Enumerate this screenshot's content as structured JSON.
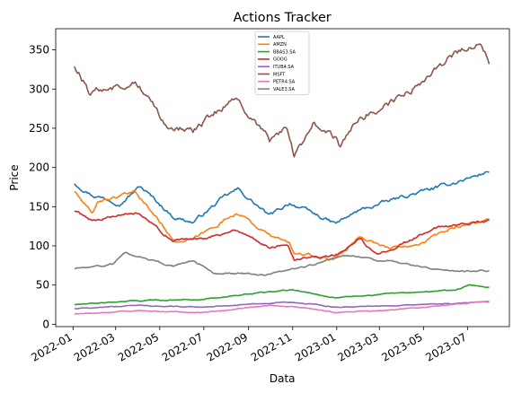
{
  "chart_data": {
    "type": "line",
    "title": "Actions Tracker",
    "xlabel": "Data",
    "ylabel": "Price",
    "xlim": [
      "2021-12-08",
      "2023-08-28"
    ],
    "ylim": [
      -3,
      377
    ],
    "x_ticks": [
      "2022-01",
      "2022-03",
      "2022-05",
      "2022-07",
      "2022-09",
      "2022-11",
      "2023-01",
      "2023-03",
      "2023-05",
      "2023-07"
    ],
    "y_ticks": [
      0,
      50,
      100,
      150,
      200,
      250,
      300,
      350
    ],
    "grid": false,
    "legend_position": "top-center",
    "series": [
      {
        "name": "AAPL",
        "color": "#1f77b4",
        "points": [
          [
            "2022-01-03",
            180
          ],
          [
            "2022-01-28",
            165
          ],
          [
            "2022-03-08",
            155
          ],
          [
            "2022-04-04",
            176
          ],
          [
            "2022-05-20",
            137
          ],
          [
            "2022-06-16",
            130
          ],
          [
            "2022-07-29",
            162
          ],
          [
            "2022-08-17",
            172
          ],
          [
            "2022-09-30",
            138
          ],
          [
            "2022-10-28",
            155
          ],
          [
            "2022-12-30",
            128
          ],
          [
            "2023-02-01",
            145
          ],
          [
            "2023-03-31",
            162
          ],
          [
            "2023-05-31",
            177
          ],
          [
            "2023-07-31",
            195
          ]
        ]
      },
      {
        "name": "AMZN",
        "color": "#ff7f0e",
        "points": [
          [
            "2022-01-03",
            170
          ],
          [
            "2022-01-28",
            139
          ],
          [
            "2022-02-04",
            157
          ],
          [
            "2022-03-29",
            168
          ],
          [
            "2022-05-24",
            105
          ],
          [
            "2022-06-15",
            107
          ],
          [
            "2022-08-16",
            143
          ],
          [
            "2022-09-30",
            113
          ],
          [
            "2022-10-28",
            103
          ],
          [
            "2022-11-04",
            90
          ],
          [
            "2022-12-28",
            83
          ],
          [
            "2023-02-02",
            112
          ],
          [
            "2023-03-15",
            97
          ],
          [
            "2023-04-28",
            105
          ],
          [
            "2023-06-15",
            125
          ],
          [
            "2023-07-31",
            133
          ]
        ]
      },
      {
        "name": "BBAS3.SA",
        "color": "#2ca02c",
        "points": [
          [
            "2022-01-03",
            25
          ],
          [
            "2022-03-31",
            30
          ],
          [
            "2022-06-30",
            32
          ],
          [
            "2022-09-16",
            40
          ],
          [
            "2022-10-31",
            44
          ],
          [
            "2022-12-30",
            34
          ],
          [
            "2023-03-31",
            40
          ],
          [
            "2023-06-15",
            44
          ],
          [
            "2023-07-04",
            50
          ],
          [
            "2023-07-31",
            47
          ]
        ]
      },
      {
        "name": "GOOG",
        "color": "#d62728",
        "points": [
          [
            "2022-01-03",
            145
          ],
          [
            "2022-01-28",
            133
          ],
          [
            "2022-03-29",
            142
          ],
          [
            "2022-05-20",
            107
          ],
          [
            "2022-06-30",
            110
          ],
          [
            "2022-08-16",
            121
          ],
          [
            "2022-09-30",
            98
          ],
          [
            "2022-10-25",
            104
          ],
          [
            "2022-11-03",
            84
          ],
          [
            "2022-12-30",
            88
          ],
          [
            "2023-02-02",
            108
          ],
          [
            "2023-02-24",
            89
          ],
          [
            "2023-03-31",
            103
          ],
          [
            "2023-05-26",
            125
          ],
          [
            "2023-07-31",
            132
          ]
        ]
      },
      {
        "name": "ITUB4.SA",
        "color": "#9467bd",
        "points": [
          [
            "2022-01-03",
            20
          ],
          [
            "2022-03-31",
            24
          ],
          [
            "2022-06-30",
            22
          ],
          [
            "2022-09-30",
            27
          ],
          [
            "2022-10-31",
            28
          ],
          [
            "2022-12-30",
            22
          ],
          [
            "2023-03-31",
            24
          ],
          [
            "2023-05-31",
            26
          ],
          [
            "2023-07-31",
            29
          ]
        ]
      },
      {
        "name": "MSFT",
        "color": "#8c564b",
        "points": [
          [
            "2022-01-03",
            330
          ],
          [
            "2022-01-24",
            296
          ],
          [
            "2022-03-29",
            310
          ],
          [
            "2022-05-11",
            255
          ],
          [
            "2022-06-16",
            245
          ],
          [
            "2022-08-12",
            290
          ],
          [
            "2022-09-30",
            233
          ],
          [
            "2022-10-25",
            250
          ],
          [
            "2022-11-03",
            214
          ],
          [
            "2022-11-30",
            255
          ],
          [
            "2022-12-30",
            239
          ],
          [
            "2023-01-05",
            222
          ],
          [
            "2023-02-02",
            264
          ],
          [
            "2023-03-31",
            288
          ],
          [
            "2023-05-31",
            332
          ],
          [
            "2023-06-15",
            348
          ],
          [
            "2023-07-18",
            359
          ],
          [
            "2023-07-31",
            335
          ]
        ]
      },
      {
        "name": "PETR4.SA",
        "color": "#e377c2",
        "points": [
          [
            "2022-01-03",
            13
          ],
          [
            "2022-03-31",
            17
          ],
          [
            "2022-06-30",
            15
          ],
          [
            "2022-09-30",
            24
          ],
          [
            "2022-11-30",
            20
          ],
          [
            "2022-12-30",
            15
          ],
          [
            "2023-03-31",
            19
          ],
          [
            "2023-05-31",
            24
          ],
          [
            "2023-07-31",
            29
          ]
        ]
      },
      {
        "name": "VALE3.SA",
        "color": "#7f7f7f",
        "points": [
          [
            "2022-01-03",
            71
          ],
          [
            "2022-02-25",
            76
          ],
          [
            "2022-03-15",
            91
          ],
          [
            "2022-04-15",
            82
          ],
          [
            "2022-05-20",
            74
          ],
          [
            "2022-06-15",
            81
          ],
          [
            "2022-07-15",
            65
          ],
          [
            "2022-09-30",
            64
          ],
          [
            "2022-11-30",
            76
          ],
          [
            "2023-01-10",
            88
          ],
          [
            "2023-02-15",
            84
          ],
          [
            "2023-03-31",
            78
          ],
          [
            "2023-05-31",
            68
          ],
          [
            "2023-07-31",
            68
          ]
        ]
      }
    ]
  }
}
